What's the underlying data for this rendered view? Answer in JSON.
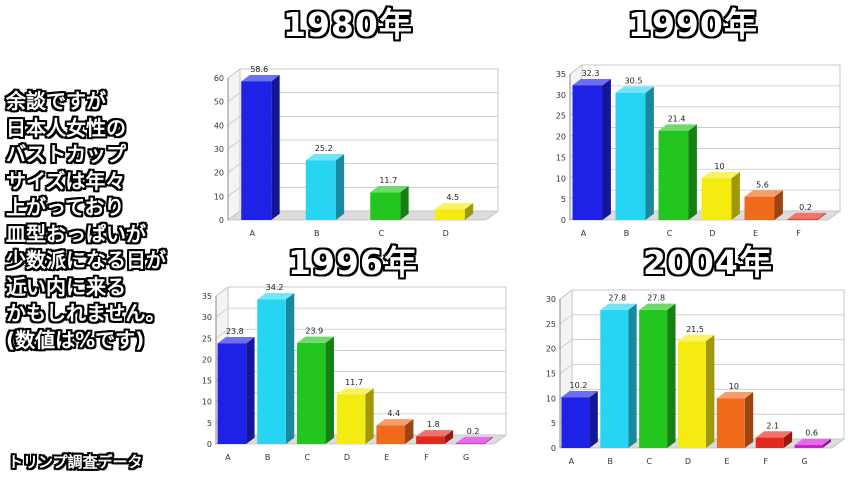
{
  "side_note": {
    "lines": [
      "余談ですが",
      "日本人女性の",
      "バストカップ",
      "サイズは年々",
      "上がっており",
      "皿型おっぱいが",
      "少数派になる日が",
      "近い内に来る",
      "かもしれません。",
      "(数値は%です)"
    ]
  },
  "source_label": "トリンプ調査データ",
  "chart_data": [
    {
      "type": "bar",
      "title": "1980年",
      "categories": [
        "A",
        "B",
        "C",
        "D"
      ],
      "values": [
        58.6,
        25.2,
        11.7,
        4.5
      ],
      "value_labels": [
        "58.6",
        "25.2",
        "11.7",
        "4.5"
      ],
      "ylim": [
        0,
        60
      ],
      "yticks": [
        0,
        10,
        20,
        30,
        40,
        50,
        60
      ],
      "xlabel": "",
      "ylabel": "",
      "grid": true
    },
    {
      "type": "bar",
      "title": "1990年",
      "categories": [
        "A",
        "B",
        "C",
        "D",
        "E",
        "F"
      ],
      "values": [
        32.3,
        30.5,
        21.4,
        10,
        5.6,
        0.2
      ],
      "value_labels": [
        "32.3",
        "30.5",
        "21.4",
        "10",
        "5.6",
        "0.2"
      ],
      "ylim": [
        0,
        35
      ],
      "yticks": [
        0,
        5,
        10,
        15,
        20,
        25,
        30,
        35
      ],
      "xlabel": "",
      "ylabel": "",
      "grid": true
    },
    {
      "type": "bar",
      "title": "1996年",
      "categories": [
        "A",
        "B",
        "C",
        "D",
        "E",
        "F",
        "G"
      ],
      "values": [
        23.8,
        34.2,
        23.9,
        11.7,
        4.4,
        1.8,
        0.2
      ],
      "value_labels": [
        "23.8",
        "34.2",
        "23.9",
        "11.7",
        "4.4",
        "1.8",
        "0.2"
      ],
      "ylim": [
        0,
        35
      ],
      "yticks": [
        0,
        5,
        10,
        15,
        20,
        25,
        30,
        35
      ],
      "xlabel": "",
      "ylabel": "",
      "grid": true
    },
    {
      "type": "bar",
      "title": "2004年",
      "categories": [
        "A",
        "B",
        "C",
        "D",
        "E",
        "F",
        "G"
      ],
      "values": [
        10.2,
        27.8,
        27.8,
        21.5,
        10,
        2.1,
        0.6
      ],
      "value_labels": [
        "10.2",
        "27.8",
        "27.8",
        "21.5",
        "10",
        "2.1",
        "0.6"
      ],
      "ylim": [
        0,
        30
      ],
      "yticks": [
        0,
        5,
        10,
        15,
        20,
        25,
        30
      ],
      "xlabel": "",
      "ylabel": "",
      "grid": true
    }
  ],
  "category_colors": {
    "A": "#1d22e6",
    "B": "#27d5f2",
    "C": "#23c51f",
    "D": "#f4ec10",
    "E": "#f06a1c",
    "F": "#e3281c",
    "G": "#d21fd6"
  }
}
